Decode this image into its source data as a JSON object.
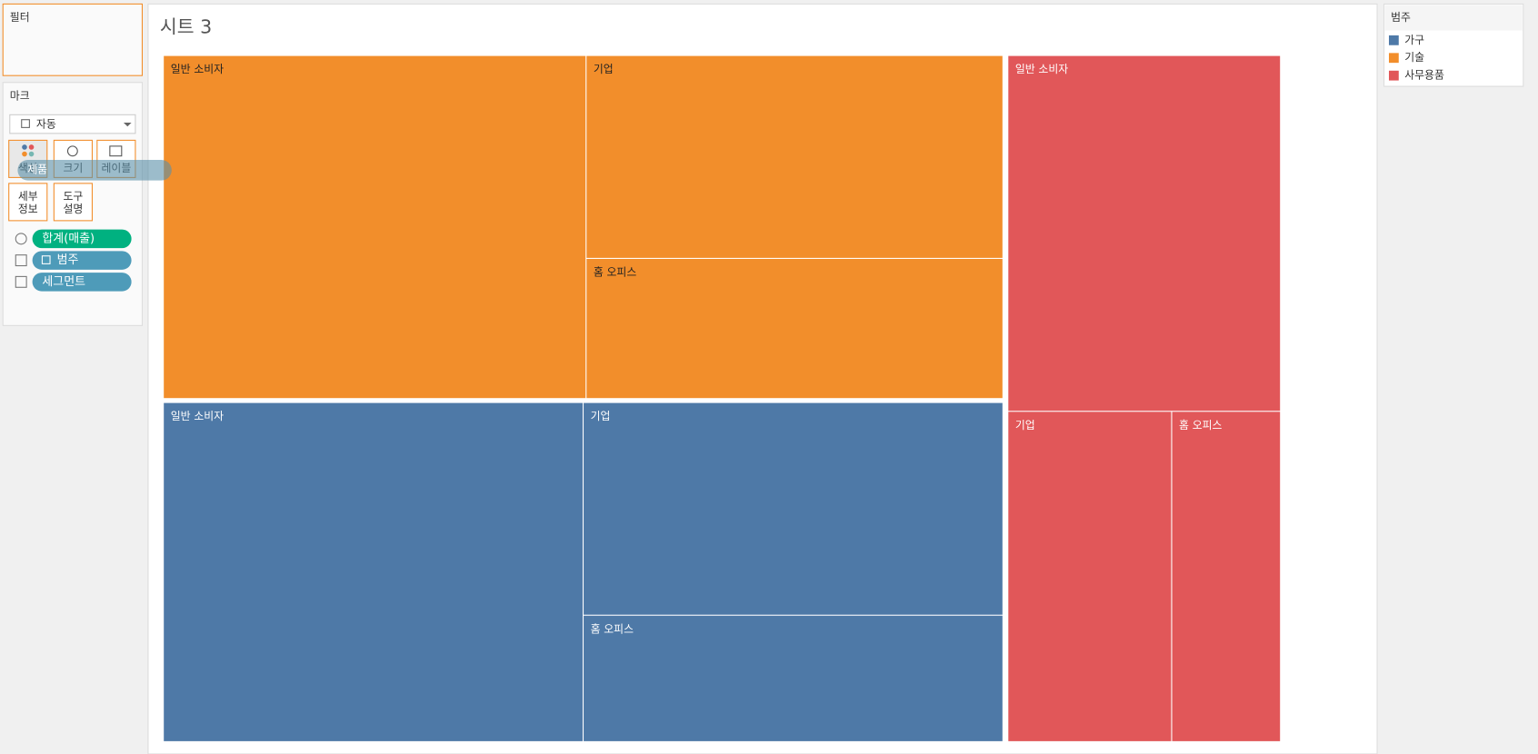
{
  "filters": {
    "title": "필터"
  },
  "marks": {
    "title": "마크",
    "type": "자동",
    "buttons": [
      "색상",
      "크기",
      "레이블",
      "세부\n정보",
      "도구\n설명"
    ],
    "pills": [
      "합계(매출)",
      "범주",
      "세그먼트"
    ],
    "dragging": "제품"
  },
  "sheet": {
    "title": "시트 3"
  },
  "legend": {
    "title": "범주",
    "items": [
      {
        "name": "가구",
        "color": "#4e79a7"
      },
      {
        "name": "기술",
        "color": "#f28e2b"
      },
      {
        "name": "사무용품",
        "color": "#e15759"
      }
    ]
  },
  "treemap": [
    {
      "category": "기술",
      "segments": [
        "일반 소비자",
        "기업",
        "홈 오피스"
      ]
    },
    {
      "category": "가구",
      "segments": [
        "일반 소비자",
        "기업",
        "홈 오피스"
      ]
    },
    {
      "category": "사무용품",
      "segments": [
        "일반 소비자",
        "기업",
        "홈 오피스"
      ]
    }
  ]
}
